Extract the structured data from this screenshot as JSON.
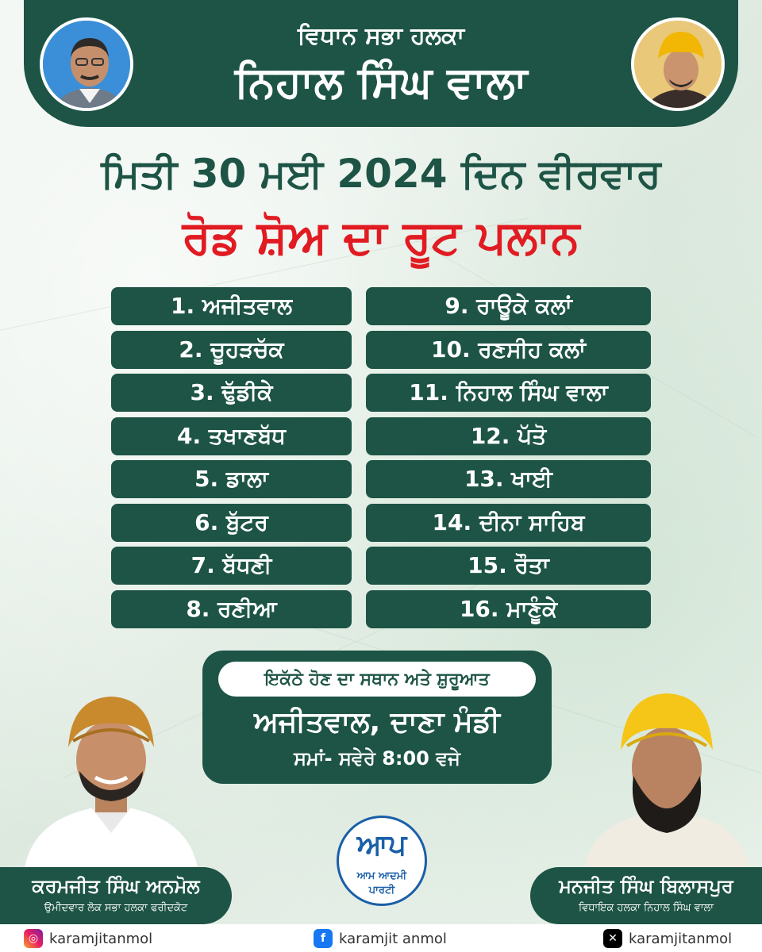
{
  "header": {
    "subtitle": "ਵਿਧਾਨ ਸਭਾ ਹਲਕਾ",
    "title": "ਨਿਹਾਲ ਸਿੰਘ ਵਾਲਾ"
  },
  "date_line": "ਮਿਤੀ 30 ਮਈ 2024 ਦਿਨ ਵੀਰਵਾਰ",
  "route_title": "ਰੋਡ ਸ਼ੋਅ ਦਾ ਰੂਟ ਪਲਾਨ",
  "stops_left": [
    "1. ਅਜੀਤਵਾਲ",
    "2. ਚੂਹੜਚੱਕ",
    "3. ਢੁੱਡੀਕੇ",
    "4. ਤਖਾਣਬੱਧ",
    "5. ਡਾਲਾ",
    "6. ਬੁੱਟਰ",
    "7. ਬੱਧਣੀ",
    "8. ਰਣੀਆ"
  ],
  "stops_right": [
    "9. ਰਾਊਕੇ ਕਲਾਂ",
    "10. ਰਣਸੀਹ ਕਲਾਂ",
    "11. ਨਿਹਾਲ ਸਿੰਘ ਵਾਲਾ",
    "12. ਪੱਤੋ",
    "13. ਖਾਈ",
    "14. ਦੀਨਾ ਸਾਹਿਬ",
    "15. ਰੌਤਾ",
    "16. ਮਾਣੂੰਕੇ"
  ],
  "assembly": {
    "label": "ਇਕੱਠੇ ਹੋਣ ਦਾ ਸਥਾਨ ਅਤੇ ਸ਼ੁਰੂਆਤ",
    "place": "ਅਜੀਤਵਾਲ, ਦਾਣਾ ਮੰਡੀ",
    "time": "ਸਮਾਂ- ਸਵੇਰੇ 8:00 ਵਜੇ"
  },
  "person_left": {
    "name": "ਕਰਮਜੀਤ ਸਿੰਘ ਅਨਮੋਲ",
    "role": "ਉਮੀਦਵਾਰ ਲੋਕ ਸਭਾ ਹਲਕਾ ਫਰੀਦਕੋਟ"
  },
  "person_right": {
    "name": "ਮਨਜੀਤ ਸਿੰਘ ਬਿਲਾਸਪੁਰ",
    "role": "ਵਿਧਾਇਕ ਹਲਕਾ ਨਿਹਾਲ ਸਿੰਘ ਵਾਲਾ"
  },
  "logo": {
    "mark": "ਆਪ",
    "line1": "ਆਮ ਆਦਮੀ",
    "line2": "ਪਾਰਟੀ"
  },
  "social": {
    "instagram": "karamjitanmol",
    "facebook": "karamjit anmol",
    "x": "karamjitanmol"
  },
  "colors": {
    "brand_green": "#1d5445",
    "accent_red": "#e11b22",
    "aap_blue": "#1a5fa8"
  }
}
